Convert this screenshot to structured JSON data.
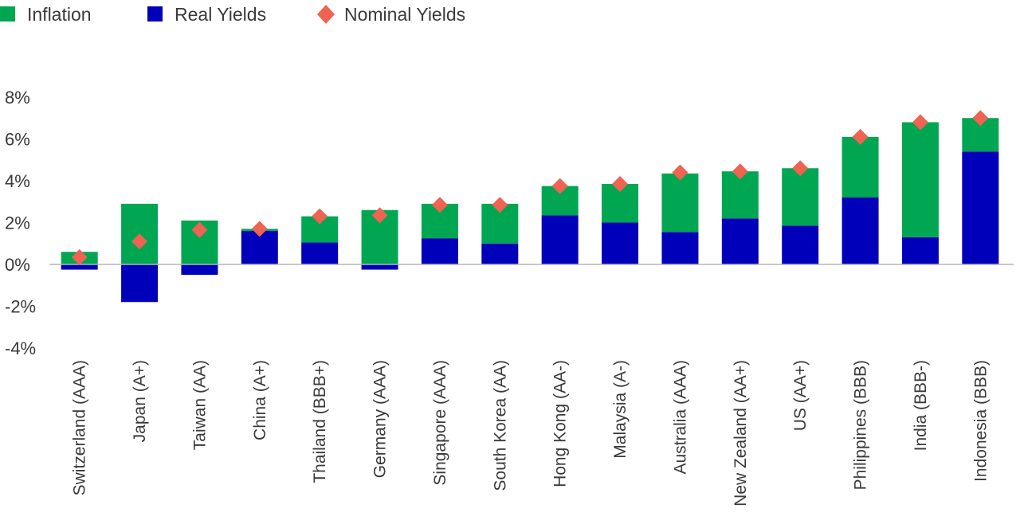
{
  "chart_data": {
    "type": "bar",
    "stacked": true,
    "legend": {
      "position": "top-left",
      "items": [
        {
          "label": "Inflation",
          "marker": "square",
          "color": "#00A651"
        },
        {
          "label": "Real Yields",
          "marker": "square",
          "color": "#0000BB"
        },
        {
          "label": "Nominal Yields",
          "marker": "diamond",
          "color": "#EE6352"
        }
      ]
    },
    "categories": [
      "Switzerland (AAA)",
      "Japan (A+)",
      "Taiwan (AA)",
      "China (A+)",
      "Thailand (BBB+)",
      "Germany (AAA)",
      "Singapore (AAA)",
      "South Korea (AA)",
      "Hong Kong (AA-)",
      "Malaysia (A-)",
      "Australia (AAA)",
      "New Zealand (AA+)",
      "US (AA+)",
      "Philippines (BBB)",
      "India (BBB-)",
      "Indonesia (BBB)"
    ],
    "series": [
      {
        "name": "Real Yields",
        "type": "bar",
        "color": "#0000BB",
        "values": [
          -0.25,
          -1.8,
          -0.5,
          1.6,
          1.05,
          -0.25,
          1.25,
          1.0,
          2.35,
          2.0,
          1.55,
          2.2,
          1.85,
          3.2,
          1.3,
          5.4
        ]
      },
      {
        "name": "Inflation",
        "type": "bar",
        "color": "#00A651",
        "values": [
          0.6,
          2.9,
          2.1,
          0.1,
          1.25,
          2.6,
          1.65,
          1.9,
          1.4,
          1.85,
          2.8,
          2.25,
          2.75,
          2.9,
          5.5,
          1.6
        ]
      },
      {
        "name": "Nominal Yields",
        "type": "marker",
        "color": "#EE6352",
        "values": [
          0.35,
          1.1,
          1.65,
          1.7,
          2.3,
          2.35,
          2.85,
          2.85,
          3.75,
          3.85,
          4.4,
          4.45,
          4.6,
          6.1,
          6.8,
          7.0
        ]
      }
    ],
    "ylim": [
      -4,
      8
    ],
    "yticks": [
      8,
      6,
      4,
      2,
      0,
      -2,
      -4
    ],
    "ytick_labels": [
      "8%",
      "6%",
      "4%",
      "2%",
      "0%",
      "-2%",
      "-4%"
    ],
    "grid": false,
    "xlabel": "",
    "ylabel": ""
  }
}
